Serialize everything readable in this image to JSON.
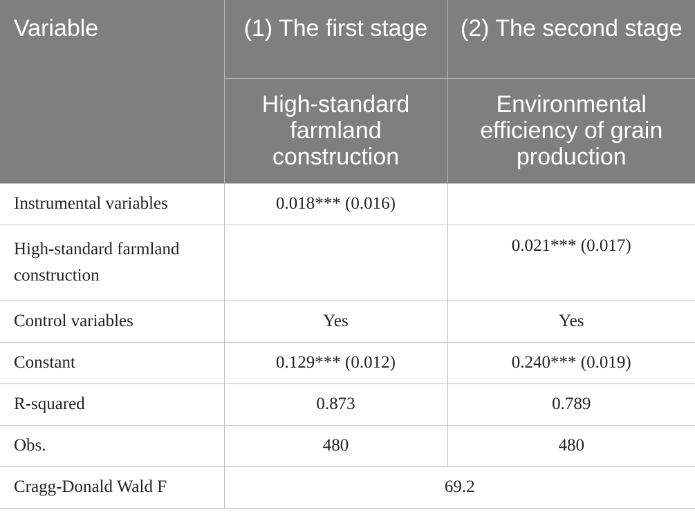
{
  "header": {
    "variable": "Variable",
    "col1_stage": "(1) The first stage",
    "col2_stage": "(2) The second stage",
    "col1_dep": "High-standard farmland construction",
    "col2_dep": "Environmental efficiency of grain production"
  },
  "rows": [
    {
      "label": "Instrumental variables",
      "col1": "0.018*** (0.016)",
      "col2": ""
    },
    {
      "label": "High-standard farmland construction",
      "col1": "",
      "col2": "0.021*** (0.017)"
    },
    {
      "label": "Control variables",
      "col1": "Yes",
      "col2": "Yes"
    },
    {
      "label": "Constant",
      "col1": "0.129*** (0.012)",
      "col2": "0.240*** (0.019)"
    },
    {
      "label": "R-squared",
      "col1": "0.873",
      "col2": "0.789"
    },
    {
      "label": "Obs.",
      "col1": "480",
      "col2": "480"
    }
  ],
  "footer": {
    "label": "Cragg-Donald Wald F",
    "value": "69.2"
  }
}
